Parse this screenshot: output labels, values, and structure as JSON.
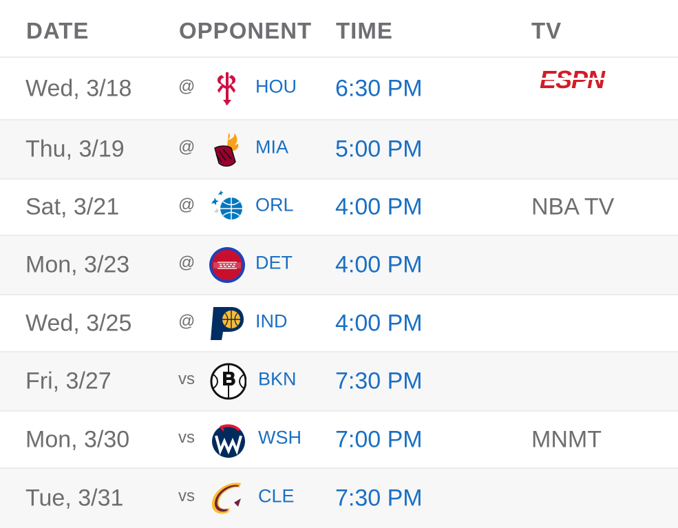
{
  "header": {
    "date": "DATE",
    "opponent": "OPPONENT",
    "time": "TIME",
    "tv": "TV"
  },
  "games": [
    {
      "date": "Wed, 3/18",
      "prefix": "@",
      "team": "HOU",
      "logo": "rockets-logo-icon",
      "time": "6:30 PM",
      "tv": "",
      "tv_logo": "espn-logo",
      "tv_logo_text": "ESPN"
    },
    {
      "date": "Thu, 3/19",
      "prefix": "@",
      "team": "MIA",
      "logo": "heat-logo-icon",
      "time": "5:00 PM",
      "tv": ""
    },
    {
      "date": "Sat, 3/21",
      "prefix": "@",
      "team": "ORL",
      "logo": "magic-logo-icon",
      "time": "4:00 PM",
      "tv": "NBA TV"
    },
    {
      "date": "Mon, 3/23",
      "prefix": "@",
      "team": "DET",
      "logo": "pistons-logo-icon",
      "time": "4:00 PM",
      "tv": ""
    },
    {
      "date": "Wed, 3/25",
      "prefix": "@",
      "team": "IND",
      "logo": "pacers-logo-icon",
      "time": "4:00 PM",
      "tv": ""
    },
    {
      "date": "Fri, 3/27",
      "prefix": "vs",
      "team": "BKN",
      "logo": "nets-logo-icon",
      "time": "7:30 PM",
      "tv": ""
    },
    {
      "date": "Mon, 3/30",
      "prefix": "vs",
      "team": "WSH",
      "logo": "wizards-logo-icon",
      "time": "7:00 PM",
      "tv": "MNMT"
    },
    {
      "date": "Tue, 3/31",
      "prefix": "vs",
      "team": "CLE",
      "logo": "cavaliers-logo-icon",
      "time": "7:30 PM",
      "tv": ""
    }
  ],
  "colors": {
    "link_blue": "#1a6fc4",
    "text_gray": "#6e6e6e",
    "header_gray": "#6e6e73",
    "alt_row": "#f7f7f7",
    "espn_red": "#d11d27"
  }
}
